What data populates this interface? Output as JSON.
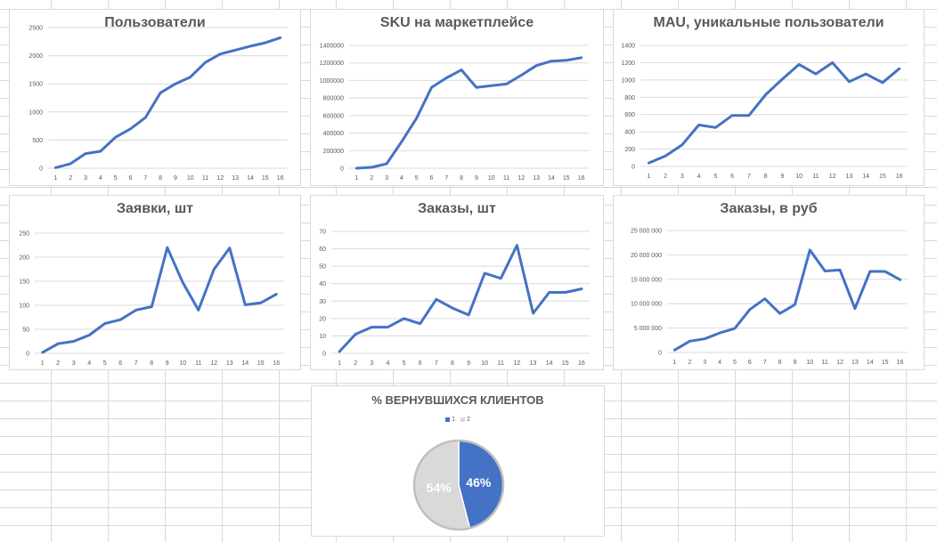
{
  "colors": {
    "line": "#4472c4",
    "pie_a": "#4472c4",
    "pie_b": "#d9d9d9",
    "axis_text": "#595959",
    "title": "#595959"
  },
  "chart_data": [
    {
      "type": "line",
      "title": "Пользователи",
      "x": [
        "1",
        "2",
        "3",
        "4",
        "5",
        "6",
        "7",
        "8",
        "9",
        "10",
        "11",
        "12",
        "13",
        "14",
        "15",
        "16"
      ],
      "values": [
        10,
        80,
        260,
        300,
        550,
        700,
        900,
        1340,
        1500,
        1620,
        1880,
        2030,
        2100,
        2170,
        2230,
        2320
      ],
      "ylim": [
        0,
        2500
      ],
      "yticks": [
        0,
        500,
        1000,
        1500,
        2000,
        2500
      ],
      "ytick_labels": [
        "0",
        "500",
        "1000",
        "1500",
        "2000",
        "2500"
      ],
      "grid": true
    },
    {
      "type": "line",
      "title": "SKU на маркетплейсе",
      "x": [
        "1",
        "2",
        "3",
        "4",
        "5",
        "6",
        "7",
        "8",
        "9",
        "10",
        "11",
        "12",
        "13",
        "14",
        "15",
        "16"
      ],
      "values": [
        0,
        10000,
        50000,
        300000,
        570000,
        920000,
        1030000,
        1120000,
        920000,
        940000,
        960000,
        1060000,
        1170000,
        1220000,
        1230000,
        1260000
      ],
      "ylim": [
        0,
        1400000
      ],
      "yticks": [
        0,
        200000,
        400000,
        600000,
        800000,
        1000000,
        1200000,
        1400000
      ],
      "ytick_labels": [
        "0",
        "200000",
        "400000",
        "600000",
        "800000",
        "1000000",
        "1200000",
        "1400000"
      ],
      "grid": true
    },
    {
      "type": "line",
      "title": "MAU, уникальные пользователи",
      "x": [
        "1",
        "2",
        "3",
        "4",
        "5",
        "6",
        "7",
        "8",
        "9",
        "10",
        "11",
        "12",
        "13",
        "14",
        "15",
        "16"
      ],
      "values": [
        40,
        120,
        250,
        480,
        450,
        590,
        590,
        830,
        1010,
        1180,
        1070,
        1200,
        980,
        1070,
        970,
        1130
      ],
      "ylim": [
        0,
        1400
      ],
      "yticks": [
        0,
        200,
        400,
        600,
        800,
        1000,
        1200,
        1400
      ],
      "ytick_labels": [
        "0",
        "200",
        "400",
        "600",
        "800",
        "1000",
        "1200",
        "1400"
      ],
      "grid": true
    },
    {
      "type": "line",
      "title": "Заявки, шт",
      "x": [
        "1",
        "2",
        "3",
        "4",
        "5",
        "6",
        "7",
        "8",
        "9",
        "10",
        "11",
        "12",
        "13",
        "14",
        "15",
        "16"
      ],
      "values": [
        2,
        20,
        25,
        38,
        62,
        70,
        90,
        97,
        220,
        147,
        90,
        175,
        219,
        101,
        105,
        123
      ],
      "ylim": [
        0,
        250
      ],
      "yticks": [
        0,
        50,
        100,
        150,
        200,
        250
      ],
      "ytick_labels": [
        "0",
        "50",
        "100",
        "150",
        "200",
        "250"
      ],
      "grid": true
    },
    {
      "type": "line",
      "title": "Заказы, шт",
      "x": [
        "1",
        "2",
        "3",
        "4",
        "5",
        "6",
        "7",
        "8",
        "9",
        "10",
        "11",
        "12",
        "13",
        "14",
        "15",
        "16"
      ],
      "values": [
        1,
        11,
        15,
        15,
        20,
        17,
        31,
        26,
        22,
        46,
        43,
        62,
        23,
        35,
        35,
        37
      ],
      "ylim": [
        0,
        70
      ],
      "yticks": [
        0,
        10,
        20,
        30,
        40,
        50,
        60,
        70
      ],
      "ytick_labels": [
        "0",
        "10",
        "20",
        "30",
        "40",
        "50",
        "60",
        "70"
      ],
      "grid": true
    },
    {
      "type": "line",
      "title": "Заказы, в руб",
      "x": [
        "1",
        "2",
        "3",
        "4",
        "5",
        "6",
        "7",
        "8",
        "9",
        "10",
        "11",
        "12",
        "13",
        "14",
        "15",
        "16"
      ],
      "values": [
        500000,
        2300000,
        2800000,
        4000000,
        4900000,
        8800000,
        11000000,
        8000000,
        9800000,
        21000000,
        16700000,
        16900000,
        9000000,
        16600000,
        16600000,
        14900000
      ],
      "ylim": [
        0,
        25000000
      ],
      "yticks": [
        0,
        5000000,
        10000000,
        15000000,
        20000000,
        25000000
      ],
      "ytick_labels": [
        "0",
        "5 000 000",
        "10 000 000",
        "15 000 000",
        "20 000 000",
        "25 000 000"
      ],
      "grid": true
    },
    {
      "type": "pie",
      "title": "% ВЕРНУВШИХСЯ КЛИЕНТОВ",
      "labels": [
        "1",
        "2"
      ],
      "values": [
        46,
        54
      ],
      "value_labels": [
        "46%",
        "54%"
      ],
      "legend": "top"
    }
  ]
}
